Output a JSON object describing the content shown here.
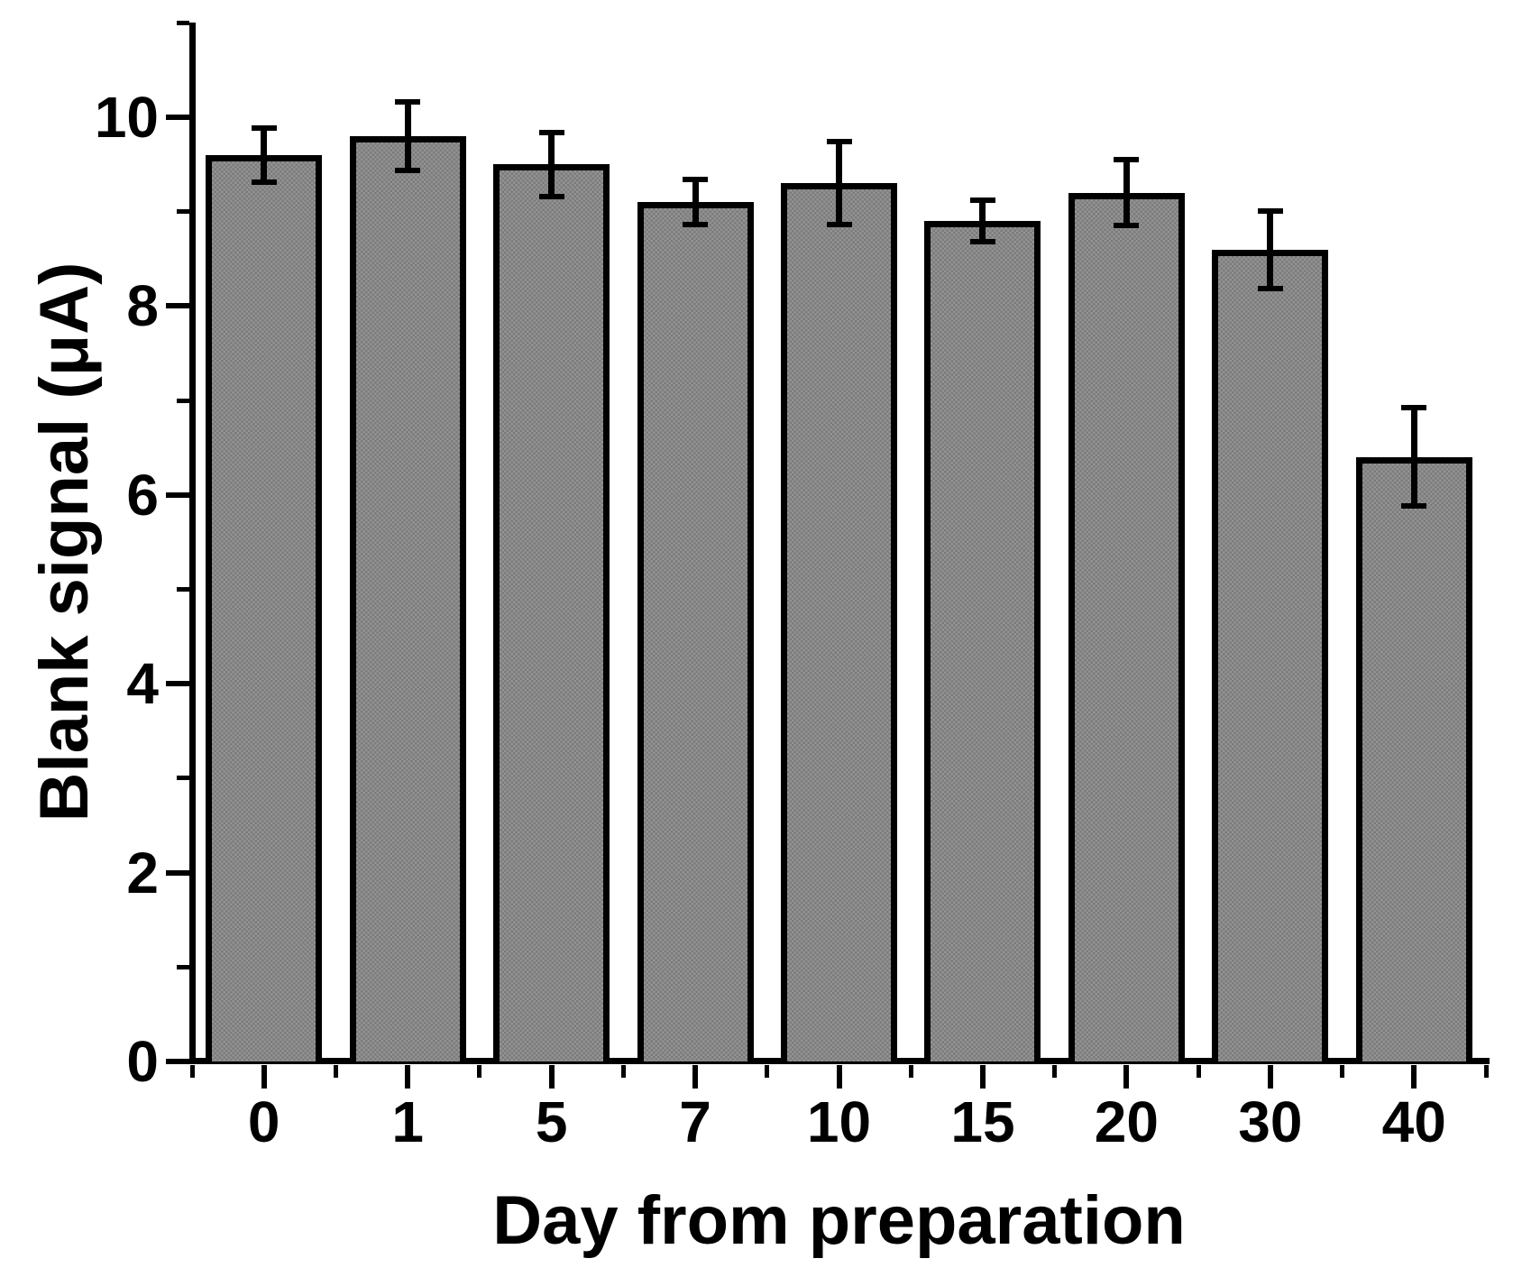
{
  "chart_data": {
    "type": "bar",
    "title": "",
    "xlabel": "Day from preparation",
    "ylabel": "Blank signal (μA)",
    "categories": [
      "0",
      "1",
      "5",
      "7",
      "10",
      "15",
      "20",
      "30",
      "40"
    ],
    "values": [
      9.6,
      9.8,
      9.5,
      9.1,
      9.3,
      8.9,
      9.2,
      8.6,
      6.4
    ],
    "errors": [
      0.29,
      0.36,
      0.34,
      0.24,
      0.44,
      0.22,
      0.35,
      0.41,
      0.52
    ],
    "ylim": [
      0,
      11
    ],
    "y_major_ticks": [
      0,
      2,
      4,
      6,
      8,
      10
    ],
    "y_major_tick_labels": [
      "0",
      "2",
      "4",
      "6",
      "8",
      "10"
    ],
    "y_minor_ticks": [
      1,
      3,
      5,
      7,
      9,
      11
    ],
    "grid": "off",
    "legend": "none",
    "bar_fill_light": "#939393",
    "bar_fill_dark": "#7b7b7b",
    "bar_border_color": "#000000",
    "axis_color": "#000000",
    "background_color": "#ffffff"
  }
}
